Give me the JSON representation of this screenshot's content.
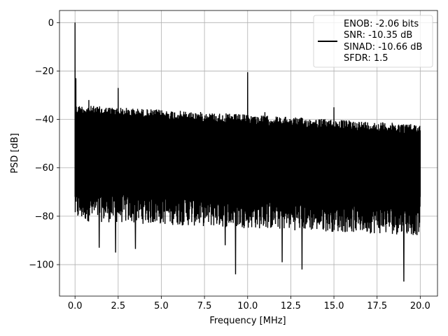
{
  "chart_data": {
    "type": "line",
    "xlabel": "Frequency [MHz]",
    "ylabel": "PSD [dB]",
    "xlim": [
      -0.9,
      21.0
    ],
    "ylim": [
      -113,
      5
    ],
    "xticks": [
      0.0,
      2.5,
      5.0,
      7.5,
      10.0,
      12.5,
      15.0,
      17.5,
      20.0
    ],
    "xtick_labels": [
      "0.0",
      "2.5",
      "5.0",
      "7.5",
      "10.0",
      "12.5",
      "15.0",
      "17.5",
      "20.0"
    ],
    "yticks": [
      0,
      -20,
      -40,
      -60,
      -80,
      -100
    ],
    "ytick_labels": [
      "0",
      "−20",
      "−40",
      "−60",
      "−80",
      "−100"
    ],
    "grid": true,
    "legend_position": "top-right",
    "series": [
      {
        "name": "ENOB: -2.06 bits\nSNR: -10.35 dB\nSINAD: -10.66 dB\nSFDR: 1.5",
        "legend_lines": [
          "ENOB: -2.06 bits",
          "SNR: -10.35 dB",
          "SINAD: -10.66 dB",
          "SFDR: 1.5"
        ],
        "color": "#000000",
        "frequency_range": [
          0.0,
          20.0
        ],
        "noise_floor_upper_db": [
          -34,
          -42
        ],
        "noise_floor_lower_db": [
          -82,
          -88
        ],
        "peaks": [
          {
            "x": 0.0,
            "y": 0
          },
          {
            "x": 0.05,
            "y": -23
          },
          {
            "x": 0.8,
            "y": -32
          },
          {
            "x": 2.5,
            "y": -27
          },
          {
            "x": 10.0,
            "y": -20.5
          },
          {
            "x": 11.0,
            "y": -37
          },
          {
            "x": 15.0,
            "y": -35
          },
          {
            "x": 9.3,
            "y": -104
          },
          {
            "x": 13.15,
            "y": -102
          },
          {
            "x": 19.05,
            "y": -107
          },
          {
            "x": 1.4,
            "y": -93
          },
          {
            "x": 2.35,
            "y": -95
          },
          {
            "x": 3.5,
            "y": -93.5
          },
          {
            "x": 8.7,
            "y": -92
          },
          {
            "x": 12.0,
            "y": -99
          }
        ]
      }
    ]
  }
}
